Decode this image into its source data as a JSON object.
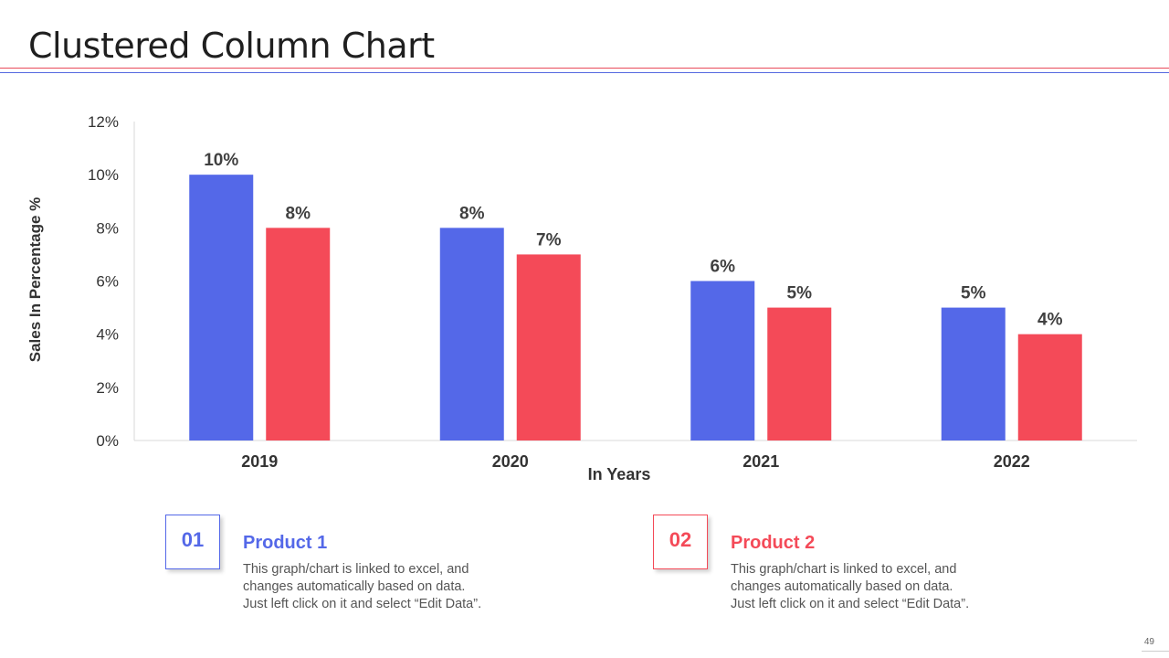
{
  "title": "Clustered Column Chart",
  "colors": {
    "product1": "#5468e8",
    "product2": "#f44a58"
  },
  "chart_data": {
    "type": "bar",
    "categories": [
      "2019",
      "2020",
      "2021",
      "2022"
    ],
    "series": [
      {
        "name": "Product 1",
        "values": [
          10,
          8,
          6,
          5
        ],
        "labels": [
          "10%",
          "8%",
          "6%",
          "5%"
        ]
      },
      {
        "name": "Product 2",
        "values": [
          8,
          7,
          5,
          4
        ],
        "labels": [
          "8%",
          "7%",
          "5%",
          "4%"
        ]
      }
    ],
    "xlabel": "In Years",
    "ylabel": "Sales In Percentage %",
    "ylim": [
      0,
      12
    ],
    "yticks": [
      0,
      2,
      4,
      6,
      8,
      10,
      12
    ],
    "ytick_labels": [
      "0%",
      "2%",
      "4%",
      "6%",
      "8%",
      "10%",
      "12%"
    ],
    "grid": false,
    "legend": "none"
  },
  "cards": [
    {
      "number": "01",
      "title": "Product 1",
      "lines": [
        "This graph/chart is linked to excel, and",
        "changes automatically based on data.",
        "Just left click on it and select “Edit Data”."
      ]
    },
    {
      "number": "02",
      "title": "Product 2",
      "lines": [
        "This graph/chart is linked to excel, and",
        "changes automatically based on data.",
        "Just left click on it and select “Edit Data”."
      ]
    }
  ],
  "page_number": "49"
}
